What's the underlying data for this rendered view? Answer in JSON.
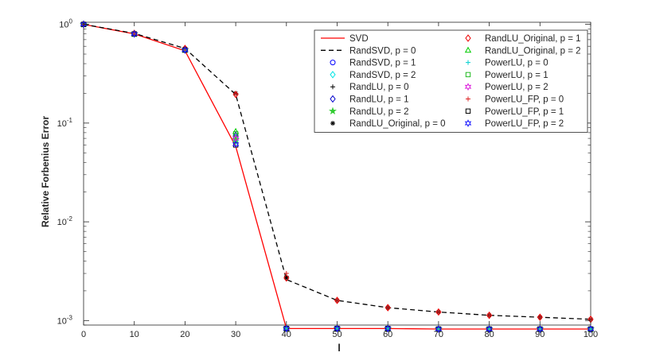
{
  "chart_data": {
    "type": "line",
    "title": "",
    "xlabel": "l",
    "ylabel": "Relative Forbenius Error",
    "x": [
      0,
      10,
      20,
      30,
      40,
      50,
      60,
      70,
      80,
      90,
      100
    ],
    "xlim": [
      0,
      100
    ],
    "ylim": [
      0.0009,
      1.05
    ],
    "yscale": "log",
    "xticks": [
      "0",
      "10",
      "20",
      "30",
      "40",
      "50",
      "60",
      "70",
      "80",
      "90",
      "100"
    ],
    "yticks": [
      {
        "value": 0.001,
        "base": "10",
        "exp": "-3"
      },
      {
        "value": 0.01,
        "base": "10",
        "exp": "-2"
      },
      {
        "value": 0.1,
        "base": "10",
        "exp": "-1"
      },
      {
        "value": 1,
        "base": "10",
        "exp": "0"
      }
    ],
    "grid": false,
    "legend_position": "top-right",
    "legend_columns": 2,
    "series": [
      {
        "name": "SVD",
        "color": "#ff0000",
        "line": "solid",
        "marker": "none",
        "values": [
          1.0,
          0.8,
          0.54,
          0.058,
          0.00083,
          0.00083,
          0.00083,
          0.00082,
          0.00082,
          0.00082,
          0.00082
        ]
      },
      {
        "name": "RandSVD, p = 0",
        "color": "#000000",
        "line": "dashed",
        "marker": "none",
        "values": [
          1.0,
          0.81,
          0.57,
          0.195,
          0.0026,
          0.0016,
          0.00135,
          0.00122,
          0.00113,
          0.00108,
          0.00103
        ]
      },
      {
        "name": "RandSVD, p = 1",
        "color": "#0000ff",
        "line": "none",
        "marker": "circle",
        "values": [
          1.0,
          0.8,
          0.55,
          0.072,
          0.00083,
          0.00083,
          0.00083,
          0.00082,
          0.00082,
          0.00082,
          0.00082
        ]
      },
      {
        "name": "RandSVD, p = 2",
        "color": "#00e5e5",
        "line": "none",
        "marker": "diamond",
        "values": [
          1.0,
          0.8,
          0.55,
          0.066,
          0.00083,
          0.00083,
          0.00083,
          0.00082,
          0.00082,
          0.00082,
          0.00082
        ]
      },
      {
        "name": "RandLU, p = 0",
        "color": "#000000",
        "line": "none",
        "marker": "plus",
        "values": [
          1.0,
          0.81,
          0.57,
          0.2,
          0.0028,
          0.0016,
          0.00135,
          0.00122,
          0.00113,
          0.00108,
          0.00103
        ]
      },
      {
        "name": "RandLU, p = 1",
        "color": "#0000cc",
        "line": "none",
        "marker": "diamond",
        "values": [
          1.0,
          0.8,
          0.55,
          0.075,
          0.00083,
          0.00083,
          0.00083,
          0.00082,
          0.00082,
          0.00082,
          0.00082
        ]
      },
      {
        "name": "RandLU, p = 2",
        "color": "#33cc33",
        "line": "none",
        "marker": "star",
        "values": [
          1.0,
          0.8,
          0.55,
          0.068,
          0.00083,
          0.00083,
          0.00083,
          0.00082,
          0.00082,
          0.00082,
          0.00082
        ]
      },
      {
        "name": "RandLU_Original, p = 0",
        "color": "#000000",
        "line": "none",
        "marker": "asterisk",
        "values": [
          1.0,
          0.81,
          0.57,
          0.2,
          0.0027,
          0.0016,
          0.00135,
          0.00122,
          0.00113,
          0.00108,
          0.00103
        ]
      },
      {
        "name": "RandLU_Original, p = 1",
        "color": "#ee0000",
        "line": "none",
        "marker": "diamond",
        "values": [
          1.0,
          0.81,
          0.57,
          0.195,
          0.0027,
          0.0016,
          0.00135,
          0.00122,
          0.00113,
          0.00108,
          0.00103
        ]
      },
      {
        "name": "RandLU_Original, p = 2",
        "color": "#00cc00",
        "line": "none",
        "marker": "triangle",
        "values": [
          1.0,
          0.8,
          0.55,
          0.082,
          0.00083,
          0.00083,
          0.00083,
          0.00082,
          0.00082,
          0.00082,
          0.00082
        ]
      },
      {
        "name": "PowerLU, p = 0",
        "color": "#00d0d0",
        "line": "none",
        "marker": "plus",
        "values": [
          1.0,
          0.8,
          0.55,
          0.063,
          0.00083,
          0.00083,
          0.00083,
          0.00082,
          0.00082,
          0.00082,
          0.00082
        ]
      },
      {
        "name": "PowerLU, p = 1",
        "color": "#22bb22",
        "line": "none",
        "marker": "square",
        "values": [
          1.0,
          0.8,
          0.55,
          0.078,
          0.00083,
          0.00083,
          0.00083,
          0.00082,
          0.00082,
          0.00082,
          0.00082
        ]
      },
      {
        "name": "PowerLU, p = 2",
        "color": "#dd22dd",
        "line": "none",
        "marker": "hexagram",
        "values": [
          1.0,
          0.8,
          0.55,
          0.07,
          0.00083,
          0.00083,
          0.00083,
          0.00082,
          0.00082,
          0.00082,
          0.00082
        ]
      },
      {
        "name": "PowerLU_FP, p = 0",
        "color": "#dd2222",
        "line": "none",
        "marker": "plus",
        "values": [
          1.0,
          0.81,
          0.57,
          0.198,
          0.003,
          0.0016,
          0.00135,
          0.00122,
          0.00113,
          0.00108,
          0.00103
        ]
      },
      {
        "name": "PowerLU_FP, p = 1",
        "color": "#000000",
        "line": "none",
        "marker": "square",
        "values": [
          1.0,
          0.8,
          0.55,
          0.06,
          0.00083,
          0.00083,
          0.00083,
          0.00082,
          0.00082,
          0.00082,
          0.00082
        ]
      },
      {
        "name": "PowerLU_FP, p = 2",
        "color": "#1a1aff",
        "line": "none",
        "marker": "hexagram",
        "values": [
          1.0,
          0.8,
          0.55,
          0.061,
          0.00083,
          0.00083,
          0.00083,
          0.00082,
          0.00082,
          0.00082,
          0.00082
        ]
      }
    ]
  }
}
